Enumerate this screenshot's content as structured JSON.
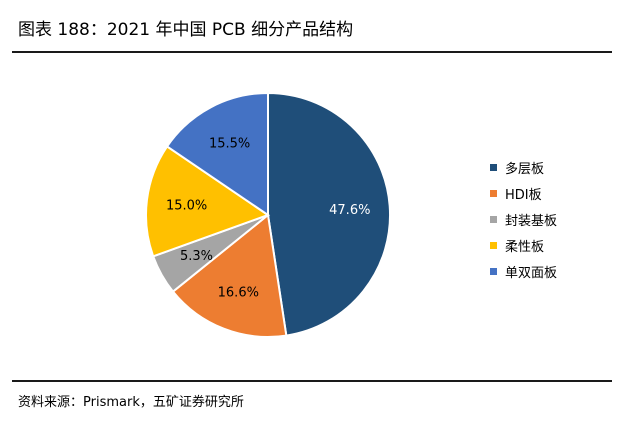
{
  "header": {
    "title": "图表 188：2021 年中国 PCB 细分产品结构"
  },
  "footer": {
    "source": "资料来源：Prismark，五矿证券研究所"
  },
  "chart_data": {
    "type": "pie",
    "title": "",
    "categories": [
      "多层板",
      "HDI板",
      "封装基板",
      "柔性板",
      "单双面板"
    ],
    "values": [
      47.6,
      16.6,
      5.3,
      15.0,
      15.5
    ],
    "value_labels": [
      "47.6%",
      "16.6%",
      "5.3%",
      "15.0%",
      "15.5%"
    ],
    "colors": [
      "#1f4e79",
      "#ed7d31",
      "#a5a5a5",
      "#ffc000",
      "#4472c4"
    ],
    "label_colors": [
      "#ffffff",
      "#000000",
      "#000000",
      "#000000",
      "#000000"
    ],
    "start_angle_deg": 0,
    "direction": "clockwise",
    "legend_position": "right"
  }
}
